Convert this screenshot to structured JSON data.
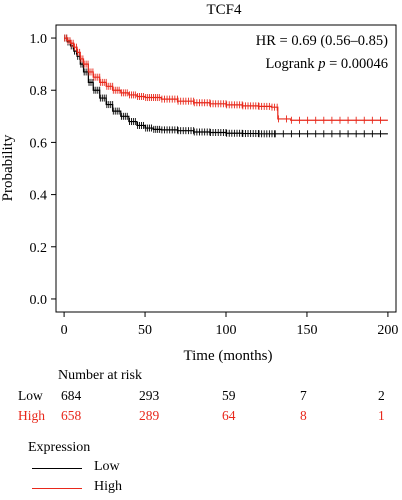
{
  "chart_data": {
    "type": "line",
    "title": "TCF4",
    "xlabel": "Time (months)",
    "ylabel": "Probability",
    "xlim": [
      -5,
      205
    ],
    "ylim": [
      -0.05,
      1.05
    ],
    "x_ticks": [
      0,
      50,
      100,
      150,
      200
    ],
    "y_ticks": [
      0.0,
      0.2,
      0.4,
      0.6,
      0.8,
      1.0
    ],
    "y_tick_labels": [
      "0.0",
      "0.2",
      "0.4",
      "0.6",
      "0.8",
      "1.0"
    ],
    "annotations": {
      "hr": "HR = 0.69 (0.56–0.85)",
      "logrank_prefix": "Logrank ",
      "logrank_p": "p",
      "logrank_value": " = 0.00046"
    },
    "series": [
      {
        "name": "Low",
        "color": "#000000",
        "x": [
          0,
          2,
          4,
          6,
          8,
          10,
          12,
          15,
          18,
          22,
          26,
          30,
          35,
          40,
          45,
          50,
          55,
          60,
          70,
          80,
          90,
          100,
          110,
          120,
          130,
          140,
          160,
          180,
          200
        ],
        "y": [
          1.0,
          0.985,
          0.97,
          0.95,
          0.93,
          0.9,
          0.87,
          0.83,
          0.8,
          0.77,
          0.745,
          0.72,
          0.7,
          0.68,
          0.665,
          0.655,
          0.65,
          0.648,
          0.645,
          0.64,
          0.638,
          0.635,
          0.634,
          0.633,
          0.633,
          0.633,
          0.633,
          0.633,
          0.633
        ]
      },
      {
        "name": "High",
        "color": "#e8281b",
        "x": [
          0,
          2,
          4,
          6,
          8,
          10,
          12,
          15,
          18,
          22,
          26,
          30,
          35,
          40,
          45,
          50,
          60,
          70,
          80,
          90,
          100,
          110,
          120,
          128,
          132,
          140,
          160,
          180,
          200
        ],
        "y": [
          1.0,
          0.99,
          0.98,
          0.965,
          0.945,
          0.92,
          0.9,
          0.87,
          0.85,
          0.83,
          0.815,
          0.8,
          0.79,
          0.782,
          0.776,
          0.772,
          0.766,
          0.758,
          0.752,
          0.748,
          0.744,
          0.74,
          0.738,
          0.735,
          0.69,
          0.685,
          0.685,
          0.685,
          0.685
        ]
      }
    ]
  },
  "risk_table": {
    "title": "Number at risk",
    "rows": [
      {
        "label": "Low",
        "color": "#000000",
        "values": [
          "684",
          "293",
          "59",
          "7",
          "2"
        ]
      },
      {
        "label": "High",
        "color": "#e8281b",
        "values": [
          "658",
          "289",
          "64",
          "8",
          "1"
        ]
      }
    ]
  },
  "legend": {
    "title": "Expression",
    "items": [
      {
        "label": "Low",
        "color": "#000000"
      },
      {
        "label": "High",
        "color": "#e8281b"
      }
    ]
  }
}
